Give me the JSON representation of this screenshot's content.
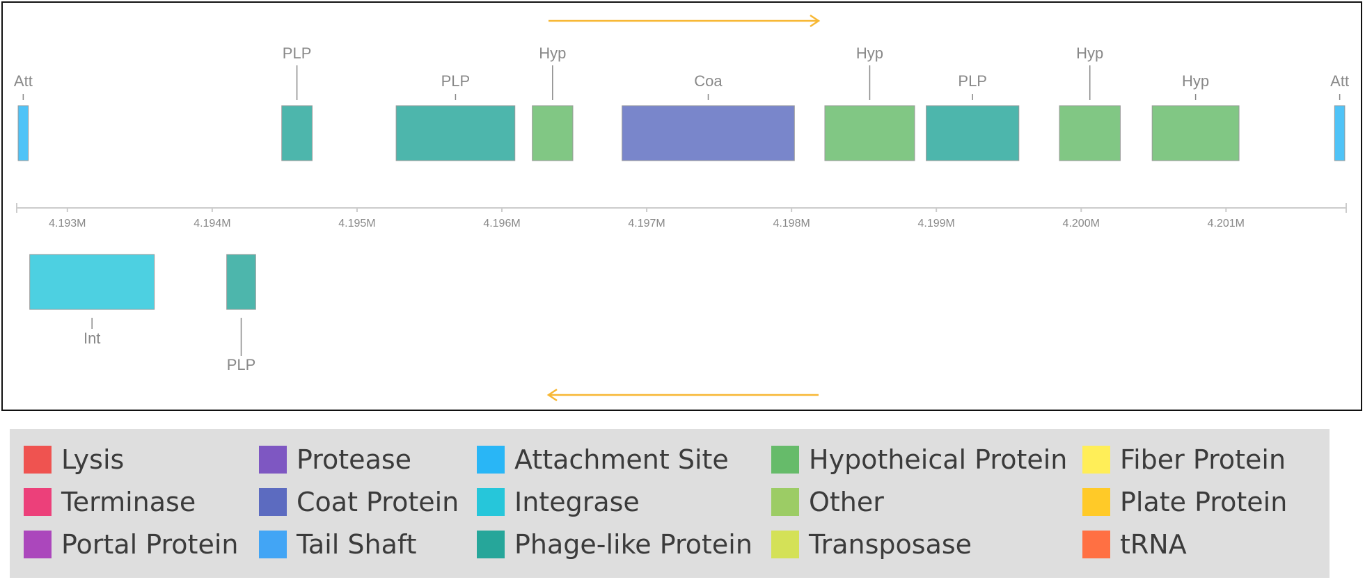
{
  "map": {
    "forward_strand_genes": [
      {
        "label": "Att",
        "start": 4192660,
        "end": 4192730,
        "category": "Attachment Site"
      },
      {
        "label": "PLP",
        "start": 4194480,
        "end": 4194690,
        "category": "Phage-like Protein"
      },
      {
        "label": "PLP",
        "start": 4195270,
        "end": 4196090,
        "category": "Phage-like Protein"
      },
      {
        "label": "Hyp",
        "start": 4196210,
        "end": 4196490,
        "category": "Other"
      },
      {
        "label": "Coa",
        "start": 4196830,
        "end": 4198020,
        "category": "Coat Protein"
      },
      {
        "label": "Hyp",
        "start": 4198230,
        "end": 4198850,
        "category": "Other"
      },
      {
        "label": "PLP",
        "start": 4198930,
        "end": 4199570,
        "category": "Phage-like Protein"
      },
      {
        "label": "Hyp",
        "start": 4199850,
        "end": 4200270,
        "category": "Other"
      },
      {
        "label": "Hyp",
        "start": 4200490,
        "end": 4201090,
        "category": "Other"
      },
      {
        "label": "Att",
        "start": 4201750,
        "end": 4201820,
        "category": "Attachment Site"
      }
    ],
    "reverse_strand_genes": [
      {
        "label": "Int",
        "start": 4192740,
        "end": 4193600,
        "category": "Integrase"
      },
      {
        "label": "PLP",
        "start": 4194100,
        "end": 4194300,
        "category": "Phage-like Protein"
      }
    ],
    "axis": {
      "min": 4192650,
      "max": 4201830,
      "ticks": [
        {
          "value": 4193000,
          "label": "4.193M"
        },
        {
          "value": 4194000,
          "label": "4.194M"
        },
        {
          "value": 4195000,
          "label": "4.195M"
        },
        {
          "value": 4196000,
          "label": "4.196M"
        },
        {
          "value": 4197000,
          "label": "4.197M"
        },
        {
          "value": 4198000,
          "label": "4.198M"
        },
        {
          "value": 4199000,
          "label": "4.199M"
        },
        {
          "value": 4200000,
          "label": "4.200M"
        },
        {
          "value": 4201000,
          "label": "4.201M"
        }
      ]
    },
    "arrow_color": "#f7b733",
    "axis_color": "#cccccc",
    "label_color": "#888888",
    "gene_stroke": "#999999"
  },
  "legend": {
    "items": [
      {
        "label": "Lysis",
        "color": "#ef5350"
      },
      {
        "label": "Terminase",
        "color": "#ec407a"
      },
      {
        "label": "Portal Protein",
        "color": "#ab47bc"
      },
      {
        "label": "Protease",
        "color": "#7e57c2"
      },
      {
        "label": "Coat Protein",
        "color": "#5c6bc0"
      },
      {
        "label": "Tail Shaft",
        "color": "#42a5f5"
      },
      {
        "label": "Attachment Site",
        "color": "#29b6f6"
      },
      {
        "label": "Integrase",
        "color": "#26c6da"
      },
      {
        "label": "Phage-like Protein",
        "color": "#26a69a"
      },
      {
        "label": "Hypotheical Protein",
        "color": "#66bb6a"
      },
      {
        "label": "Other",
        "color": "#9ccc65"
      },
      {
        "label": "Transposase",
        "color": "#d4e157"
      },
      {
        "label": "Fiber Protein",
        "color": "#ffee58"
      },
      {
        "label": "Plate Protein",
        "color": "#ffca28"
      },
      {
        "label": "tRNA",
        "color": "#ff7043"
      }
    ]
  },
  "gene_fill": {
    "Attachment Site": "#4fc3f7",
    "Integrase": "#4dd0e1",
    "Phage-like Protein": "#4db6ac",
    "Other": "#81c784",
    "Coat Protein": "#7986cb"
  }
}
